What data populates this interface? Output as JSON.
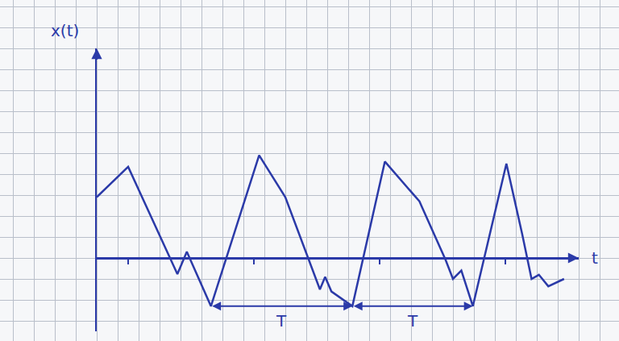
{
  "chart_data": {
    "type": "line",
    "xlabel": "t",
    "ylabel": "x(t)",
    "x": [
      0,
      1.5,
      3.85,
      4.3,
      5.45,
      7.75,
      9.0,
      10.65,
      10.9,
      11.2,
      12.2,
      13.75,
      15.4,
      16.65,
      17.0,
      17.4,
      17.95,
      19.55,
      20.3,
      20.75,
      21.1,
      21.55,
      22.3
    ],
    "values": [
      2.9,
      4.35,
      -0.77,
      0.3,
      -2.3,
      4.9,
      2.9,
      -1.5,
      -0.9,
      -1.6,
      -2.3,
      4.6,
      2.7,
      -0.1,
      -1.0,
      -0.6,
      -2.3,
      4.5,
      1.15,
      -1.0,
      -0.8,
      -1.35,
      -1.0
    ],
    "color": "#2b3aa8",
    "xlim": [
      0,
      23
    ],
    "ylim": [
      -3.5,
      10
    ],
    "xticks": [
      1.5,
      7.5,
      13.5,
      19.5
    ],
    "yticks": [],
    "tick_labels": false,
    "annotations": [
      {
        "text": "T",
        "x0": 5.45,
        "x1": 12.2,
        "y": -2.3
      },
      {
        "text": "T",
        "x0": 12.2,
        "x1": 17.95,
        "y": -2.3
      }
    ]
  }
}
